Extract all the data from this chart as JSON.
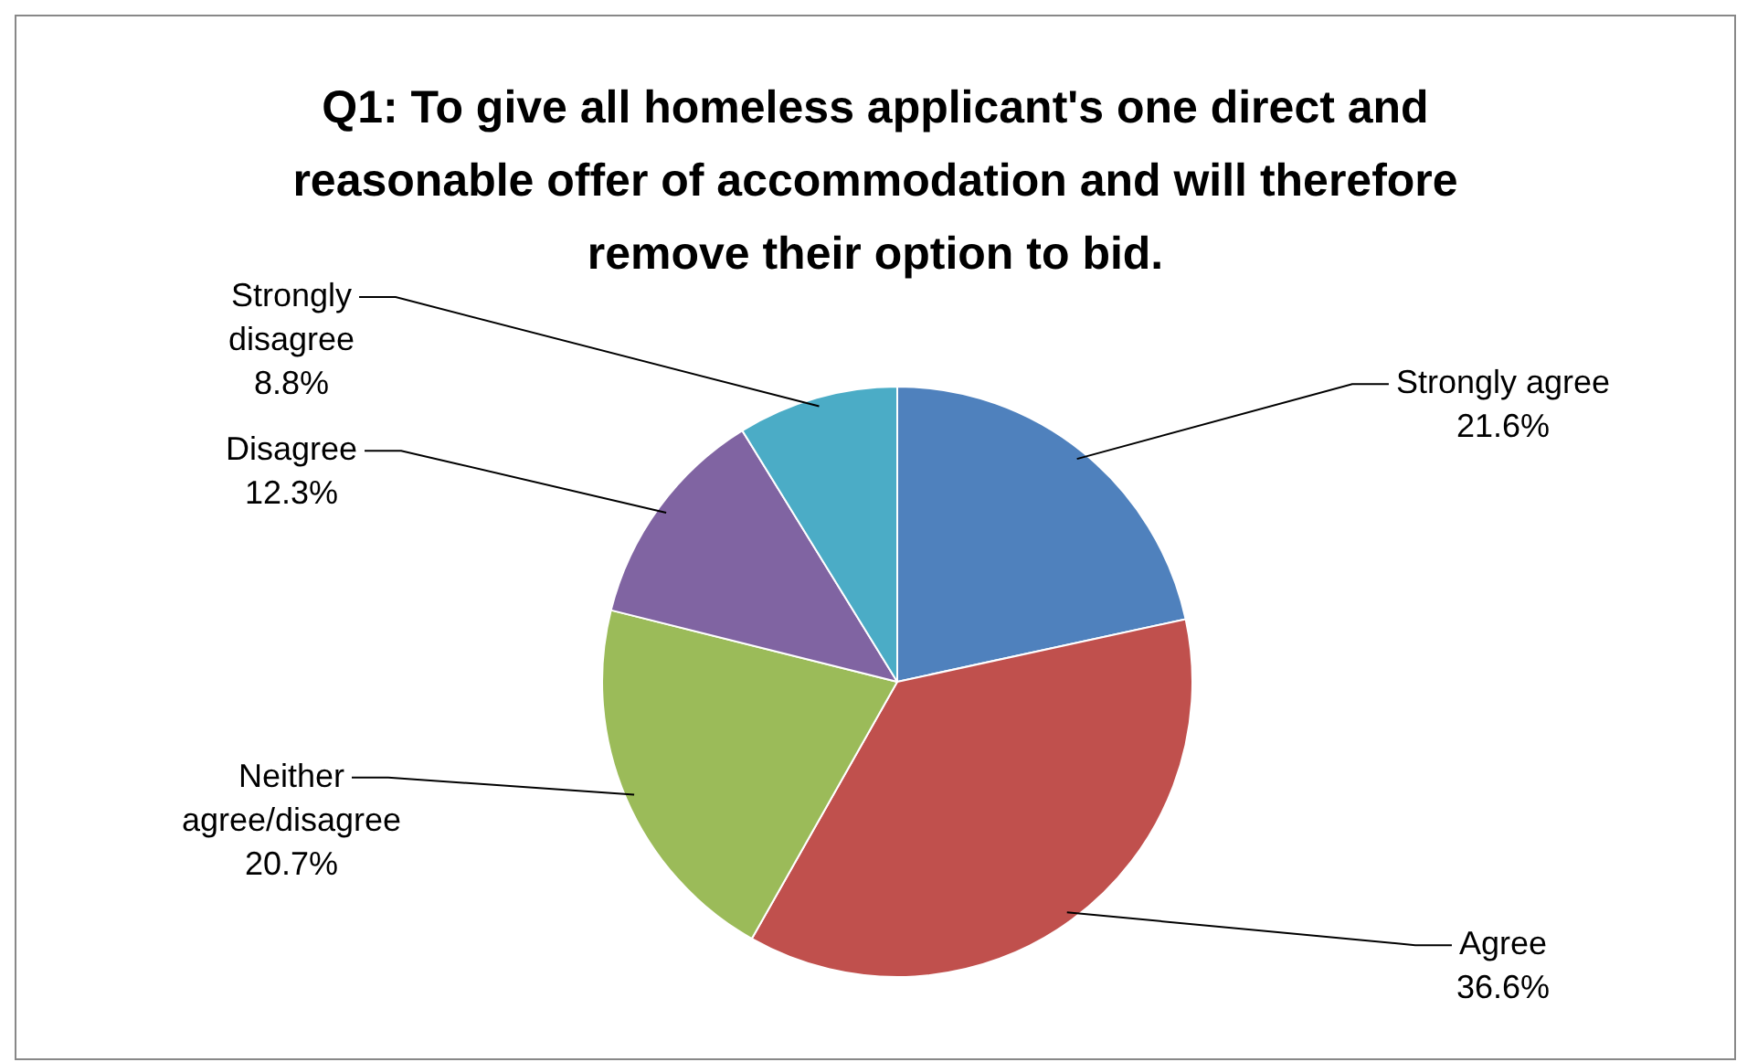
{
  "chart_data": {
    "type": "pie",
    "title": "Q1: To give all homeless applicant's one direct and reasonable offer of accommodation and will therefore remove their option to bid.",
    "categories": [
      "Strongly agree",
      "Agree",
      "Neither agree/disagree",
      "Disagree",
      "Strongly disagree"
    ],
    "values": [
      21.6,
      36.6,
      20.7,
      12.3,
      8.8
    ],
    "value_labels": [
      "21.6%",
      "36.6%",
      "20.7%",
      "12.3%",
      "8.8%"
    ],
    "colors": [
      "#4f81bd",
      "#c0504d",
      "#9bbb59",
      "#8064a2",
      "#4bacc6"
    ],
    "legend": false
  }
}
